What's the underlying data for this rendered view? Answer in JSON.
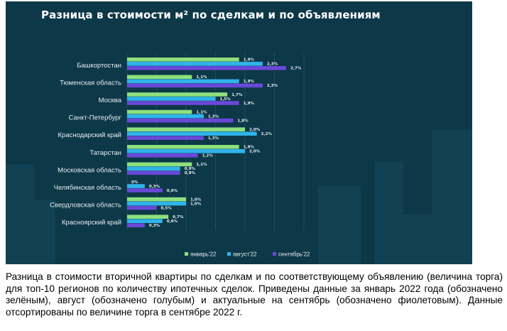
{
  "chart_data": {
    "type": "bar",
    "orientation": "horizontal",
    "title": "Разница в стоимости м² по сделкам и по объявлениям",
    "categories": [
      "Башкортостан",
      "Тюменская область",
      "Москва",
      "Санкт-Петербург",
      "Краснодарский край",
      "Татарстан",
      "Московская область",
      "Челябинская область",
      "Свердловская область",
      "Красноярский край"
    ],
    "series": [
      {
        "name": "январь'22",
        "color": "#8de07c",
        "values": [
          1.9,
          1.1,
          1.7,
          1.1,
          2.0,
          1.9,
          1.1,
          0.0,
          1.0,
          0.7
        ],
        "labels": [
          "1,9%",
          "1,1%",
          "1,7%",
          "1,1%",
          "2,0%",
          "1,9%",
          "1,1%",
          "0%",
          "1,0%",
          "0,7%"
        ]
      },
      {
        "name": "август'22",
        "color": "#2fb4ea",
        "values": [
          2.3,
          1.9,
          1.5,
          1.3,
          2.2,
          2.0,
          0.9,
          0.3,
          1.0,
          0.6
        ],
        "labels": [
          "2,3%",
          "1,9%",
          "1,5%",
          "1,3%",
          "2,2%",
          "2,0%",
          "0,9%",
          "0,3%",
          "1,0%",
          "0,6%"
        ]
      },
      {
        "name": "сентябрь'22",
        "color": "#6a48d8",
        "values": [
          2.7,
          2.3,
          1.9,
          1.8,
          1.3,
          1.2,
          0.9,
          0.6,
          0.5,
          0.3
        ],
        "labels": [
          "2,7%",
          "2,3%",
          "1,9%",
          "1,8%",
          "1,3%",
          "1,2%",
          "0,9%",
          "0,6%",
          "0,5%",
          "0,3%"
        ]
      }
    ],
    "xlim": [
      0,
      3
    ],
    "grid": true,
    "legend": "bottom-right"
  },
  "colors": {
    "panel_background": "#0d3848",
    "gridline": "#2a5868",
    "text": "#e6eef2"
  },
  "caption": "Разница в стоимости вторичной квартиры по сделкам и по соответствующему объявлению (величина торга) для топ-10 регионов по количеству ипотечных сделок. Приведены данные за январь 2022 года (обозначено зелёным), август (обозначено голубым) и актуальные на сентябрь (обозначено фиолетовым). Данные отсортированы по величине торга в сентябре 2022 г."
}
